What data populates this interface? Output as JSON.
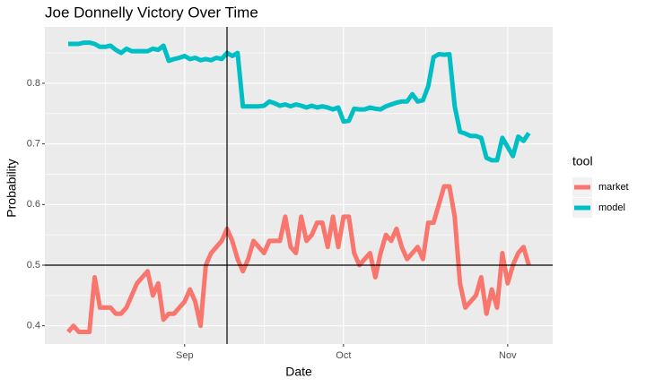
{
  "chart_data": {
    "type": "line",
    "title": "Joe Donnelly Victory Over Time",
    "x_label": "Date",
    "y_label": "Probability",
    "legend_title": "tool",
    "legend_position": "right",
    "grid": true,
    "x": [
      -22,
      -21,
      -20,
      -19,
      -18,
      -17,
      -16,
      -15,
      -14,
      -13,
      -12,
      -11,
      -10,
      -9,
      -8,
      -7,
      -6,
      -5,
      -4,
      -3,
      -2,
      -1,
      0,
      1,
      2,
      3,
      4,
      5,
      6,
      7,
      8,
      9,
      10,
      11,
      12,
      13,
      14,
      15,
      16,
      17,
      18,
      19,
      20,
      21,
      22,
      23,
      24,
      25,
      26,
      27,
      28,
      29,
      30,
      31,
      32,
      33,
      34,
      35,
      36,
      37,
      38,
      39,
      40,
      41,
      42,
      43,
      44,
      45,
      46,
      47,
      48,
      49,
      50,
      51,
      52,
      53,
      54,
      55,
      56,
      57,
      58,
      59,
      60,
      61,
      62,
      63,
      64,
      65
    ],
    "series": [
      {
        "name": "market",
        "color": "#F8766D",
        "values": [
          0.39,
          0.4,
          0.39,
          0.39,
          0.39,
          0.48,
          0.43,
          0.43,
          0.43,
          0.42,
          0.42,
          0.43,
          0.45,
          0.47,
          0.48,
          0.49,
          0.45,
          0.47,
          0.41,
          0.42,
          0.42,
          0.43,
          0.44,
          0.46,
          0.44,
          0.4,
          0.5,
          0.52,
          0.53,
          0.54,
          0.56,
          0.54,
          0.51,
          0.49,
          0.51,
          0.54,
          0.53,
          0.52,
          0.54,
          0.54,
          0.54,
          0.58,
          0.53,
          0.52,
          0.58,
          0.54,
          0.55,
          0.57,
          0.57,
          0.53,
          0.58,
          0.53,
          0.58,
          0.58,
          0.52,
          0.5,
          0.51,
          0.52,
          0.48,
          0.52,
          0.55,
          0.54,
          0.56,
          0.53,
          0.51,
          0.52,
          0.53,
          0.51,
          0.57,
          0.57,
          0.6,
          0.63,
          0.63,
          0.58,
          0.47,
          0.43,
          0.44,
          0.45,
          0.48,
          0.42,
          0.46,
          0.43,
          0.52,
          0.47,
          0.5,
          0.52,
          0.53,
          0.5
        ]
      },
      {
        "name": "model",
        "color": "#00BFC4",
        "values": [
          0.865,
          0.865,
          0.865,
          0.867,
          0.867,
          0.865,
          0.86,
          0.86,
          0.862,
          0.855,
          0.85,
          0.857,
          0.853,
          0.853,
          0.853,
          0.853,
          0.857,
          0.855,
          0.862,
          0.837,
          0.84,
          0.842,
          0.845,
          0.84,
          0.842,
          0.838,
          0.84,
          0.838,
          0.842,
          0.84,
          0.85,
          0.845,
          0.85,
          0.762,
          0.762,
          0.762,
          0.762,
          0.763,
          0.77,
          0.767,
          0.763,
          0.765,
          0.762,
          0.765,
          0.763,
          0.76,
          0.763,
          0.76,
          0.762,
          0.76,
          0.757,
          0.76,
          0.737,
          0.738,
          0.758,
          0.757,
          0.757,
          0.76,
          0.758,
          0.757,
          0.762,
          0.765,
          0.768,
          0.77,
          0.77,
          0.782,
          0.77,
          0.772,
          0.795,
          0.843,
          0.848,
          0.847,
          0.848,
          0.762,
          0.72,
          0.717,
          0.713,
          0.713,
          0.71,
          0.677,
          0.673,
          0.673,
          0.71,
          0.695,
          0.68,
          0.712,
          0.705,
          0.718
        ]
      }
    ],
    "xlim": [
      -26.4,
      69.5
    ],
    "xticks": [
      {
        "value": 0,
        "label": "Sep"
      },
      {
        "value": 30,
        "label": "Oct"
      },
      {
        "value": 61,
        "label": "Nov"
      }
    ],
    "ylim": [
      0.37,
      0.893
    ],
    "yticks": [
      0.4,
      0.5,
      0.6,
      0.7,
      0.8
    ],
    "reference_lines": {
      "x": [
        8
      ],
      "y": [
        0.5
      ]
    }
  }
}
